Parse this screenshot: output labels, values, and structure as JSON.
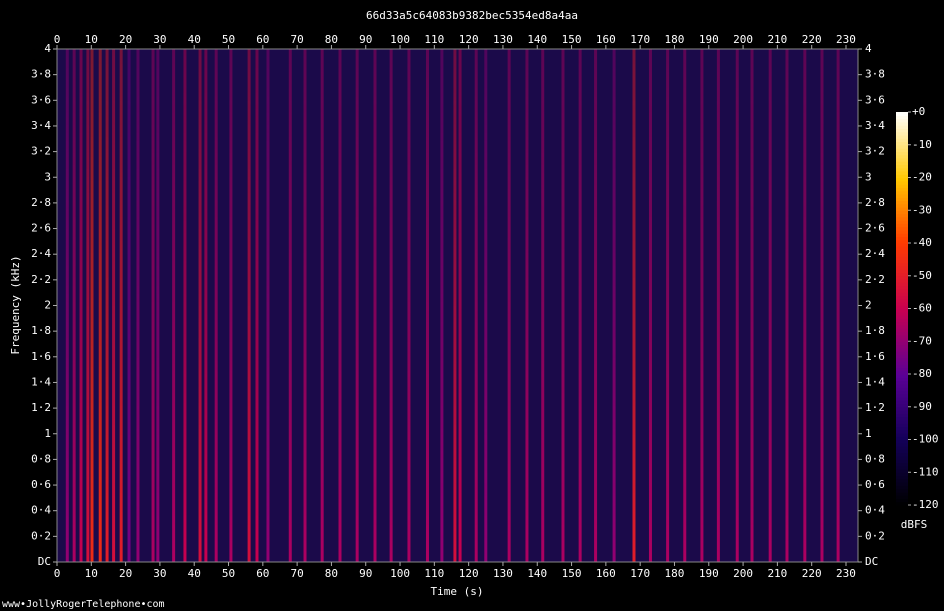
{
  "chart_data": {
    "type": "spectrogram",
    "title": "66d33a5c64083b9382bec5354ed8a4aa",
    "x_label": "Time (s)",
    "y_label": "Frequency (kHz)",
    "colorbar_label": "dBFS",
    "footer": "www•JollyRogerTelephone•com",
    "xlim": [
      0,
      233.5
    ],
    "xticks": [
      0,
      10,
      20,
      30,
      40,
      50,
      60,
      70,
      80,
      90,
      100,
      110,
      120,
      130,
      140,
      150,
      160,
      170,
      180,
      190,
      200,
      210,
      220,
      230
    ],
    "ylim": [
      0,
      4
    ],
    "yticks": [
      {
        "value": 0,
        "label": "DC"
      },
      {
        "value": 0.2,
        "label": "0·2"
      },
      {
        "value": 0.4,
        "label": "0·4"
      },
      {
        "value": 0.6,
        "label": "0·6"
      },
      {
        "value": 0.8,
        "label": "0·8"
      },
      1,
      {
        "value": 1.2,
        "label": "1·2"
      },
      {
        "value": 1.4,
        "label": "1·4"
      },
      {
        "value": 1.6,
        "label": "1·6"
      },
      {
        "value": 1.8,
        "label": "1·8"
      },
      2,
      {
        "value": 2.2,
        "label": "2·2"
      },
      {
        "value": 2.4,
        "label": "2·4"
      },
      {
        "value": 2.6,
        "label": "2·6"
      },
      {
        "value": 2.8,
        "label": "2·8"
      },
      3,
      {
        "value": 3.2,
        "label": "3·2"
      },
      {
        "value": 3.4,
        "label": "3·4"
      },
      {
        "value": 3.6,
        "label": "3·6"
      },
      {
        "value": 3.8,
        "label": "3·8"
      },
      4
    ],
    "clim": [
      -120,
      0
    ],
    "cticks": [
      {
        "value": 0,
        "label": "+0"
      },
      -10,
      -20,
      -30,
      -40,
      -50,
      -60,
      -70,
      -80,
      -90,
      -100,
      -110,
      -120
    ],
    "x": [
      3,
      5,
      7,
      9,
      10.2,
      12.6,
      14.6,
      16.5,
      18.7,
      21,
      23.6,
      28,
      29.4,
      34,
      37.3,
      41.7,
      43.4,
      46.4,
      50.7,
      56,
      58.3,
      61.5,
      68,
      72.3,
      77.3,
      82.5,
      87.5,
      92.7,
      97.4,
      102.6,
      108,
      112.2,
      116,
      117.5,
      122.2,
      125,
      131.8,
      137,
      141.6,
      147.5,
      152.5,
      157,
      162.4,
      168.2,
      173,
      178,
      183,
      188,
      192.8,
      198.3,
      202.6,
      207.9,
      212.8,
      218,
      223,
      227.7
    ],
    "values": [
      -70,
      -65,
      -60,
      -55,
      -45,
      -45,
      -50,
      -55,
      -50,
      -75,
      -70,
      -65,
      -70,
      -65,
      -60,
      -55,
      -60,
      -65,
      -65,
      -55,
      -60,
      -70,
      -65,
      -65,
      -65,
      -65,
      -65,
      -65,
      -65,
      -65,
      -65,
      -70,
      -55,
      -60,
      -65,
      -70,
      -65,
      -65,
      -65,
      -65,
      -65,
      -65,
      -70,
      -50,
      -65,
      -65,
      -65,
      -65,
      -65,
      -65,
      -65,
      -65,
      -65,
      -65,
      -65,
      -65
    ]
  }
}
